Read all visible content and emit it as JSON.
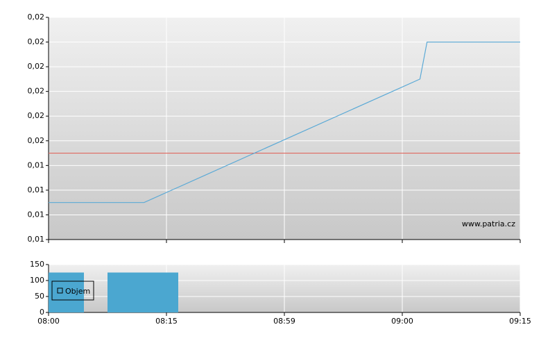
{
  "chart_data": [
    {
      "type": "line",
      "xlim": [
        0,
        4
      ],
      "xticks": [
        0,
        1,
        2,
        3,
        4
      ],
      "ylim": [
        0.0115,
        0.0205
      ],
      "yticks": [
        {
          "value": 0.0115,
          "label": "0,01"
        },
        {
          "value": 0.0125,
          "label": "0,01"
        },
        {
          "value": 0.0135,
          "label": "0,01"
        },
        {
          "value": 0.0145,
          "label": "0,01"
        },
        {
          "value": 0.0155,
          "label": "0,02"
        },
        {
          "value": 0.0165,
          "label": "0,02"
        },
        {
          "value": 0.0175,
          "label": "0,02"
        },
        {
          "value": 0.0185,
          "label": "0,02"
        },
        {
          "value": 0.0195,
          "label": "0,02"
        },
        {
          "value": 0.0205,
          "label": "0,02"
        }
      ],
      "grid": true,
      "series": [
        {
          "color": "#5aa9d6",
          "x": [
            0,
            0.81,
            3.15,
            3.21,
            4
          ],
          "values": [
            0.013,
            0.013,
            0.018,
            0.0195,
            0.0195
          ]
        }
      ],
      "reference_line": {
        "value": 0.015,
        "color": "#e0675f"
      },
      "watermark": "www.patria.cz"
    },
    {
      "type": "bar",
      "xlim": [
        0,
        4
      ],
      "xticks": [
        {
          "value": 0,
          "label": "08:00"
        },
        {
          "value": 1,
          "label": "08:15"
        },
        {
          "value": 2,
          "label": "08:59"
        },
        {
          "value": 3,
          "label": "09:00"
        },
        {
          "value": 4,
          "label": "09:15"
        }
      ],
      "ylim": [
        0,
        150
      ],
      "yticks": [
        0,
        50,
        100,
        150
      ],
      "grid": true,
      "series": [
        {
          "name": "Objem",
          "color": "#4ba7d0",
          "x_start": [
            0,
            0.5
          ],
          "x_end": [
            0.3,
            1.1
          ],
          "values": [
            125,
            125
          ]
        }
      ],
      "legend": "upper left"
    }
  ]
}
